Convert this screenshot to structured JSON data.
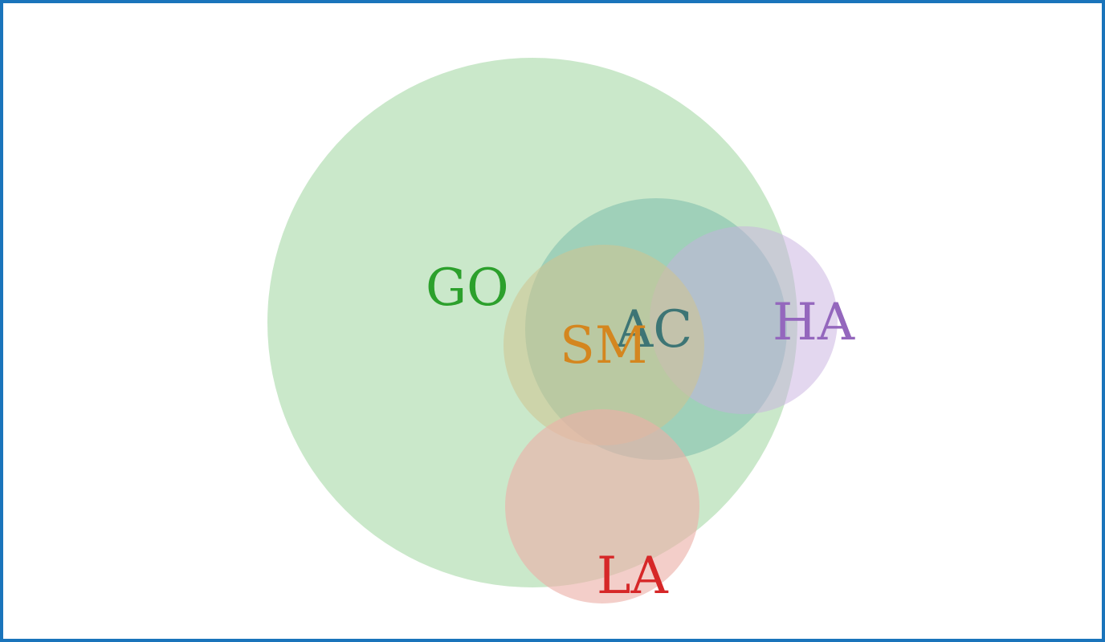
{
  "diagram": {
    "type": "euler",
    "border_color": "#1a74bb",
    "sets": [
      {
        "id": "go",
        "label": "GO",
        "fill": "#b5dfb5",
        "text_color": "#2ca02c"
      },
      {
        "id": "ac",
        "label": "AC",
        "fill": "#7cbcab",
        "text_color": "#3d7575"
      },
      {
        "id": "ha",
        "label": "HA",
        "fill": "#c8b0df",
        "text_color": "#9467bd"
      },
      {
        "id": "sm",
        "label": "SM",
        "fill": "#cfc28f",
        "text_color": "#d4861f"
      },
      {
        "id": "la",
        "label": "LA",
        "fill": "#ecb0a8",
        "text_color": "#d62728"
      }
    ]
  }
}
